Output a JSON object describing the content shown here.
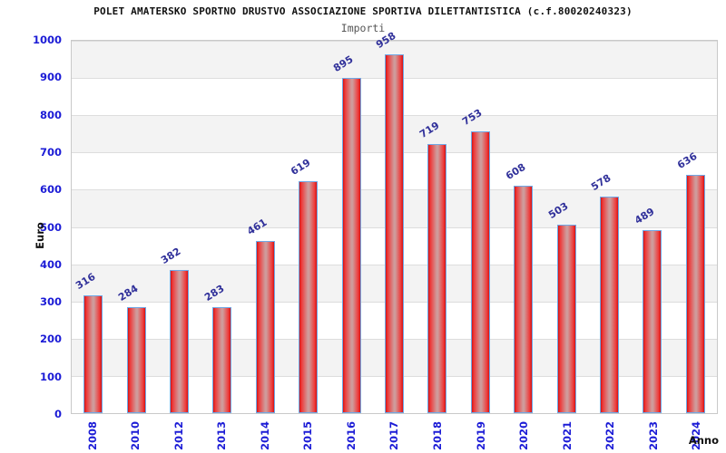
{
  "header": {
    "title": "POLET AMATERSKO SPORTNO DRUSTVO ASSOCIAZIONE SPORTIVA DILETTANTISTICA (c.f.80020240323)",
    "subtitle": "Importi"
  },
  "axes": {
    "y_label": "Euro",
    "x_label": "Anno"
  },
  "chart_data": {
    "type": "bar",
    "title": "Importi",
    "xlabel": "Anno",
    "ylabel": "Euro",
    "categories": [
      "2008",
      "2010",
      "2012",
      "2013",
      "2014",
      "2015",
      "2016",
      "2017",
      "2018",
      "2019",
      "2020",
      "2021",
      "2022",
      "2023",
      "2024"
    ],
    "values": [
      316,
      284,
      382,
      283,
      461,
      619,
      895,
      958,
      719,
      753,
      608,
      503,
      578,
      489,
      636
    ],
    "ylim": [
      0,
      1000
    ],
    "ytick_step": 100,
    "grid": true,
    "legend": "none",
    "band_fill": "alternating horizontal 100-unit bands",
    "colors": {
      "axis_text": "#1c1cd6",
      "value_text": "#30309a",
      "bar_edge_fill": "#d31414",
      "bar_bright_fill": "#ee3a3a",
      "bar_center_fill": "#cf9b9b",
      "bar_border": "#6fa8e6",
      "band_gray": "#f3f3f3",
      "gridline": "#dddddd",
      "title_text": "#111111",
      "subtitle_text": "#555555"
    }
  }
}
